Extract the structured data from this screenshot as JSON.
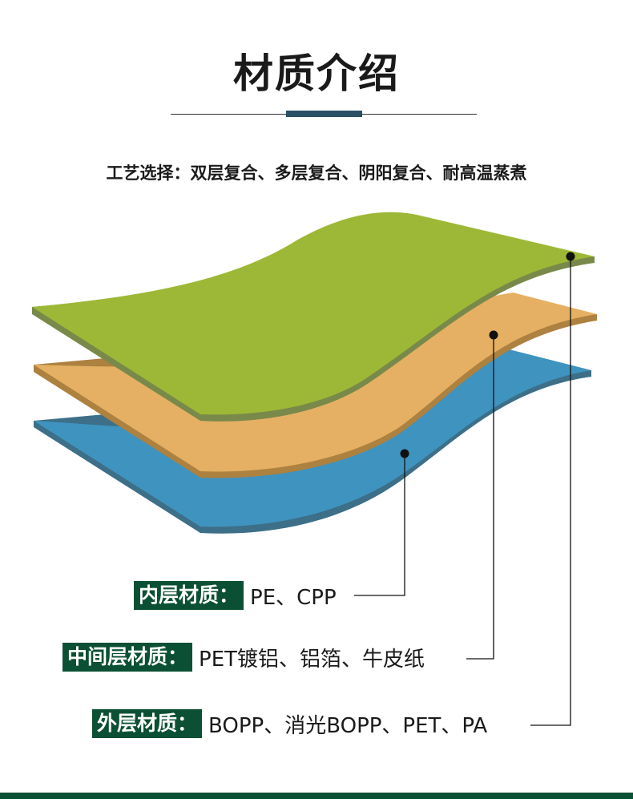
{
  "title": "材质介绍",
  "subtitle": "工艺选择：双层复合、多层复合、阴阳复合、耐高温蒸煮",
  "colors": {
    "outer": "#9db836",
    "middle": "#e5b063",
    "inner": "#3f93bf",
    "tag": "#0b5034",
    "accent": "#2c5064"
  },
  "layers": [
    {
      "tag": "内层材质：",
      "value": "PE、CPP"
    },
    {
      "tag": "中间层材质：",
      "value": "PET镀铝、铝箔、牛皮纸"
    },
    {
      "tag": "外层材质：",
      "value": "BOPP、消光BOPP、PET、PA"
    }
  ]
}
